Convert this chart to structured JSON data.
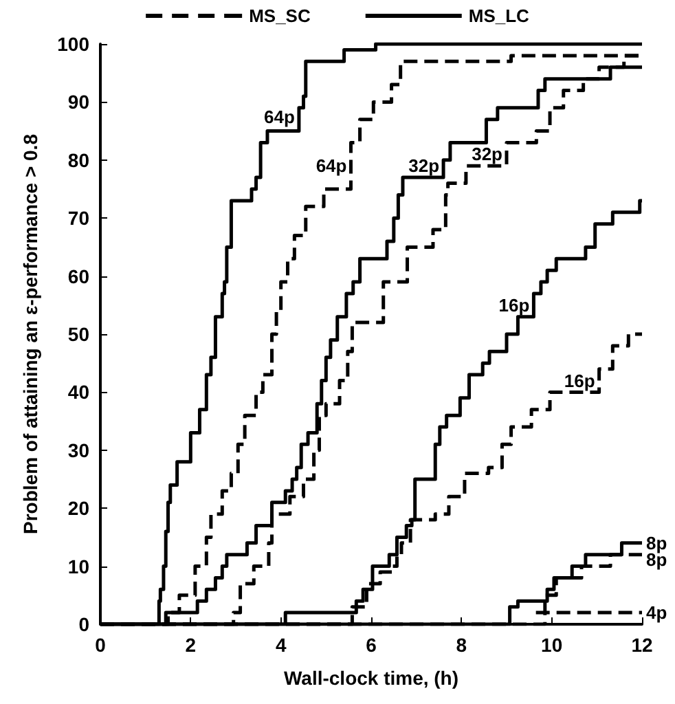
{
  "chart_data": {
    "type": "step",
    "xlabel": "Wall-clock time, (h)",
    "ylabel": "Problem of attaining an ε-performance > 0.8",
    "xlim": [
      0,
      12
    ],
    "xticks": [
      0,
      2,
      4,
      6,
      8,
      10,
      12
    ],
    "ylim": [
      0,
      100
    ],
    "yticks": [
      0,
      10,
      20,
      30,
      40,
      50,
      60,
      70,
      80,
      90,
      100
    ],
    "grid": false,
    "legend": "top",
    "marker": "none",
    "series": [
      {
        "name": "MS_SC",
        "color": "#000000",
        "line_style": "dashed",
        "x": [
          0,
          1.5,
          1.75,
          2.1,
          2.35,
          2.45,
          2.7,
          2.9,
          3.05,
          3.2,
          3.45,
          3.6,
          3.8,
          3.9,
          4.0,
          4.15,
          4.3,
          4.55,
          4.95,
          5.55,
          5.75,
          6.05,
          6.45,
          6.65,
          9.1,
          12
        ],
        "values": [
          0,
          2,
          5,
          10,
          15,
          19,
          23,
          26,
          31,
          36,
          40,
          43,
          50,
          54,
          59,
          63,
          67,
          72,
          75,
          83,
          87,
          90,
          93,
          97,
          98,
          98
        ]
      },
      {
        "name": "MS_LC",
        "color": "#000000",
        "line_style": "solid",
        "x": [
          0,
          1.3,
          1.33,
          1.4,
          1.45,
          1.5,
          1.55,
          1.7,
          1.8,
          2.0,
          2.2,
          2.35,
          2.45,
          2.55,
          2.7,
          2.75,
          2.8,
          2.9,
          3.1,
          3.35,
          3.45,
          3.55,
          3.7,
          4.4,
          4.5,
          4.55,
          5.4,
          6.1,
          12
        ],
        "values": [
          0,
          4,
          6,
          10,
          16,
          21,
          24,
          28,
          28,
          33,
          37,
          43,
          46,
          53,
          57,
          59,
          65,
          73,
          73,
          75,
          77,
          83,
          85,
          89,
          91,
          97,
          99,
          100,
          100
        ]
      },
      {
        "color": "#000000",
        "line_style": "dashed",
        "x": [
          0,
          2.95,
          3.1,
          3.4,
          3.73,
          3.8,
          4.2,
          4.5,
          4.73,
          4.85,
          5.0,
          5.3,
          5.48,
          5.58,
          6.27,
          6.8,
          7.37,
          7.65,
          7.7,
          8.1,
          9.0,
          9.66,
          9.96,
          10.26,
          10.7,
          11.05,
          11.6,
          12
        ],
        "values": [
          0,
          2,
          7,
          10,
          14,
          19,
          22,
          25,
          30,
          36,
          38,
          42,
          47,
          52,
          59,
          65,
          68,
          74,
          76,
          79,
          83,
          85,
          89,
          92,
          94,
          96,
          98,
          98
        ]
      },
      {
        "color": "#000000",
        "line_style": "solid",
        "x": [
          0,
          1.45,
          2.15,
          2.35,
          2.55,
          2.7,
          2.8,
          3.25,
          3.45,
          3.8,
          4.1,
          4.25,
          4.35,
          4.45,
          4.6,
          4.8,
          4.9,
          5.0,
          5.1,
          5.25,
          5.45,
          5.6,
          5.75,
          5.9,
          6.35,
          6.5,
          6.6,
          6.7,
          7.6,
          7.75,
          8.55,
          8.8,
          9.7,
          9.85,
          11.3,
          11.95,
          12
        ],
        "values": [
          0,
          2,
          4,
          6,
          8,
          10,
          12,
          14,
          17,
          21,
          23,
          25,
          27,
          31,
          33,
          38,
          42,
          46,
          49,
          53,
          57,
          59,
          63,
          63,
          66,
          70,
          74,
          77,
          80,
          83,
          87,
          89,
          92,
          94,
          96,
          96,
          96
        ]
      },
      {
        "color": "#000000",
        "line_style": "dashed",
        "x": [
          0,
          5.58,
          5.9,
          6.2,
          6.48,
          6.57,
          6.67,
          6.87,
          7.42,
          7.72,
          8.07,
          8.6,
          8.9,
          9.1,
          9.55,
          9.96,
          11.05,
          11.35,
          11.7,
          12
        ],
        "values": [
          0,
          3,
          7,
          9,
          10,
          12,
          14,
          18,
          19,
          22,
          26,
          27,
          31,
          34,
          37,
          40,
          44,
          48,
          50,
          50
        ]
      },
      {
        "color": "#000000",
        "line_style": "solid",
        "x": [
          0,
          4.1,
          5.67,
          5.82,
          6.03,
          6.4,
          6.57,
          6.78,
          6.9,
          6.97,
          7.42,
          7.52,
          7.67,
          7.97,
          8.17,
          8.47,
          8.62,
          9.0,
          9.25,
          9.6,
          9.76,
          9.9,
          10.1,
          10.75,
          10.96,
          11.35,
          11.95,
          12
        ],
        "values": [
          0,
          2,
          4,
          6,
          10,
          12,
          15,
          17,
          18,
          25,
          31,
          34,
          36,
          39,
          43,
          45,
          47,
          50,
          53,
          57,
          59,
          61,
          63,
          65,
          69,
          71,
          73,
          73
        ]
      },
      {
        "color": "#000000",
        "line_style": "dashed",
        "x": [
          0,
          9.85,
          10.1,
          10.66,
          11.3,
          12
        ],
        "values": [
          0,
          5,
          8,
          10,
          12,
          12
        ]
      },
      {
        "color": "#000000",
        "line_style": "solid",
        "x": [
          0,
          9.07,
          9.25,
          9.9,
          10.05,
          10.45,
          10.75,
          11.55,
          12
        ],
        "values": [
          0,
          3,
          4,
          6,
          8,
          10,
          12,
          14,
          14
        ]
      },
      {
        "color": "#000000",
        "line_style": "dashed",
        "x": [
          9.65,
          12
        ],
        "values": [
          2,
          2
        ]
      }
    ],
    "annotations": [
      {
        "text": "64p",
        "x": 4.4,
        "y": 87.5
      },
      {
        "text": "64p",
        "x": 5.55,
        "y": 79
      },
      {
        "text": "32p",
        "x": 7.6,
        "y": 79
      },
      {
        "text": "32p",
        "x": 9.0,
        "y": 81
      },
      {
        "text": "16p",
        "x": 9.6,
        "y": 55
      },
      {
        "text": "16p",
        "x": 11.05,
        "y": 42
      },
      {
        "text": "8p",
        "x": 12,
        "y": 14
      },
      {
        "text": "8p",
        "x": 12,
        "y": 12
      },
      {
        "text": "4p",
        "x": 12,
        "y": 2
      }
    ]
  }
}
